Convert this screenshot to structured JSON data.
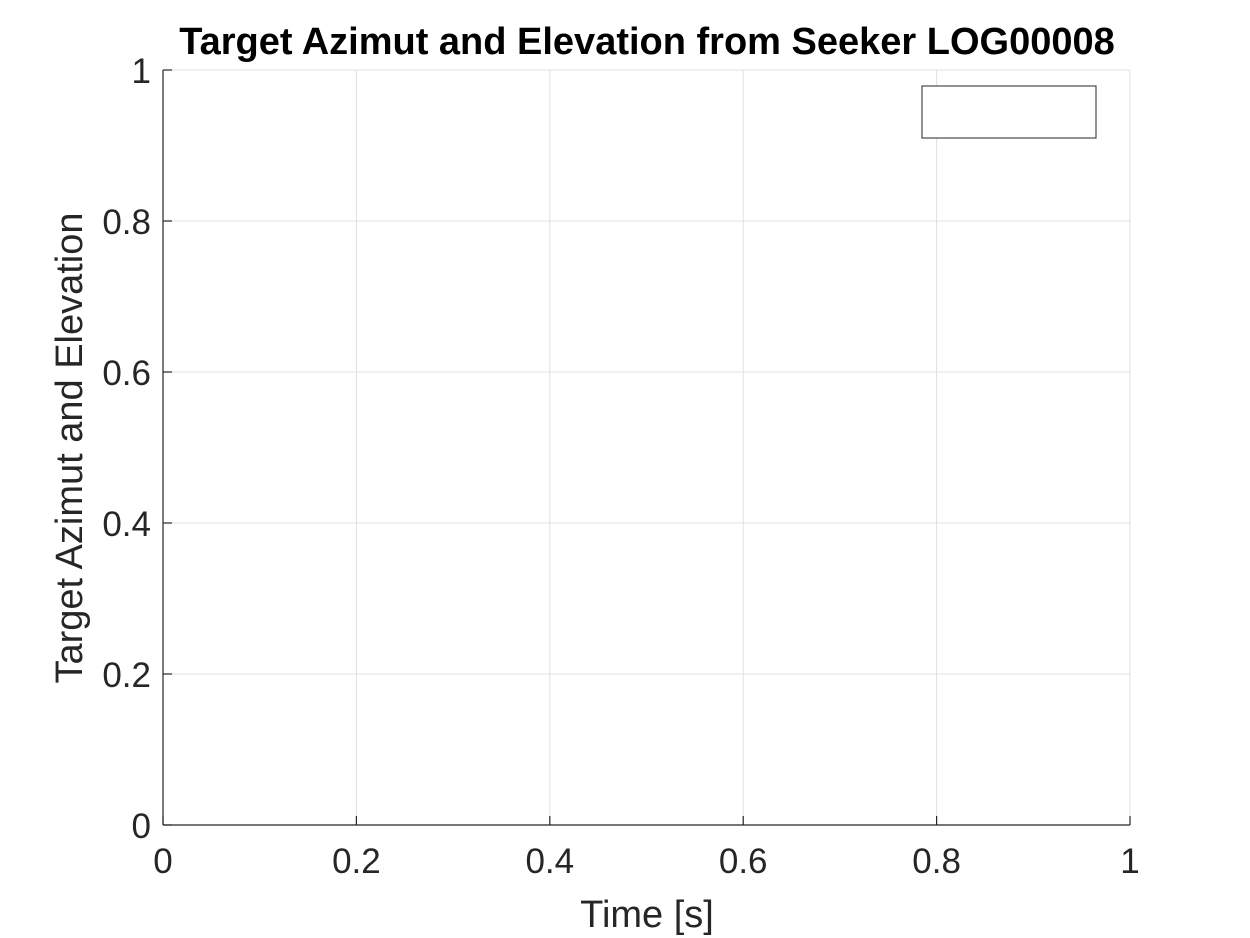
{
  "chart_data": {
    "type": "line",
    "title": "Target Azimut and Elevation from Seeker LOG00008",
    "xlabel": "Time [s]",
    "ylabel": "Target Azimut and Elevation",
    "xlim": [
      0,
      1
    ],
    "ylim": [
      0,
      1
    ],
    "x_ticks": [
      0,
      0.2,
      0.4,
      0.6,
      0.8,
      1
    ],
    "x_tick_labels": [
      "0",
      "0.2",
      "0.4",
      "0.6",
      "0.8",
      "1"
    ],
    "y_ticks": [
      0,
      0.2,
      0.4,
      0.6,
      0.8,
      1
    ],
    "y_tick_labels": [
      "0",
      "0.2",
      "0.4",
      "0.6",
      "0.8",
      "1"
    ],
    "grid": true,
    "legend": {
      "placement": "top-right",
      "entries": []
    },
    "series": []
  },
  "colors": {
    "axis": "#262626",
    "grid": "#e0e0e0",
    "background": "#ffffff",
    "title": "#000000"
  }
}
